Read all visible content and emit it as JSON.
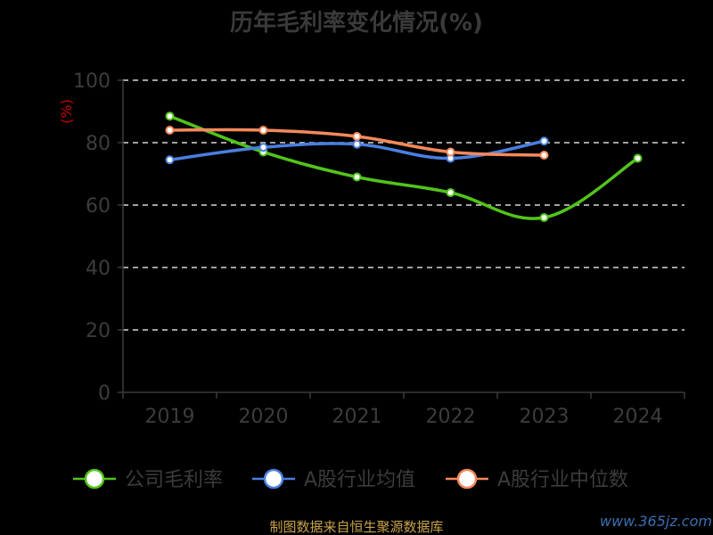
{
  "chart_data": {
    "type": "line",
    "title": "历年毛利率变化情况(%)",
    "ylabel": "(%)",
    "categories": [
      "2019",
      "2020",
      "2021",
      "2022",
      "2023",
      "2024"
    ],
    "yticks": [
      "0",
      "20",
      "40",
      "60",
      "80",
      "100"
    ],
    "ylim": [
      0,
      100
    ],
    "grid": true,
    "legend_position": "bottom",
    "series": [
      {
        "name": "公司毛利率",
        "color": "#52c41a",
        "values": [
          88.5,
          77.0,
          69.0,
          64.0,
          56.0,
          75.0
        ]
      },
      {
        "name": "A股行业均值",
        "color": "#4a7fe0",
        "values": [
          74.5,
          78.5,
          79.5,
          75.0,
          80.5,
          null
        ]
      },
      {
        "name": "A股行业中位数",
        "color": "#f5895a",
        "values": [
          84.0,
          84.0,
          82.0,
          77.0,
          76.0,
          null
        ]
      }
    ]
  },
  "footer": {
    "source": "制图数据来自恒生聚源数据库",
    "watermark": "www.365jz.com"
  }
}
